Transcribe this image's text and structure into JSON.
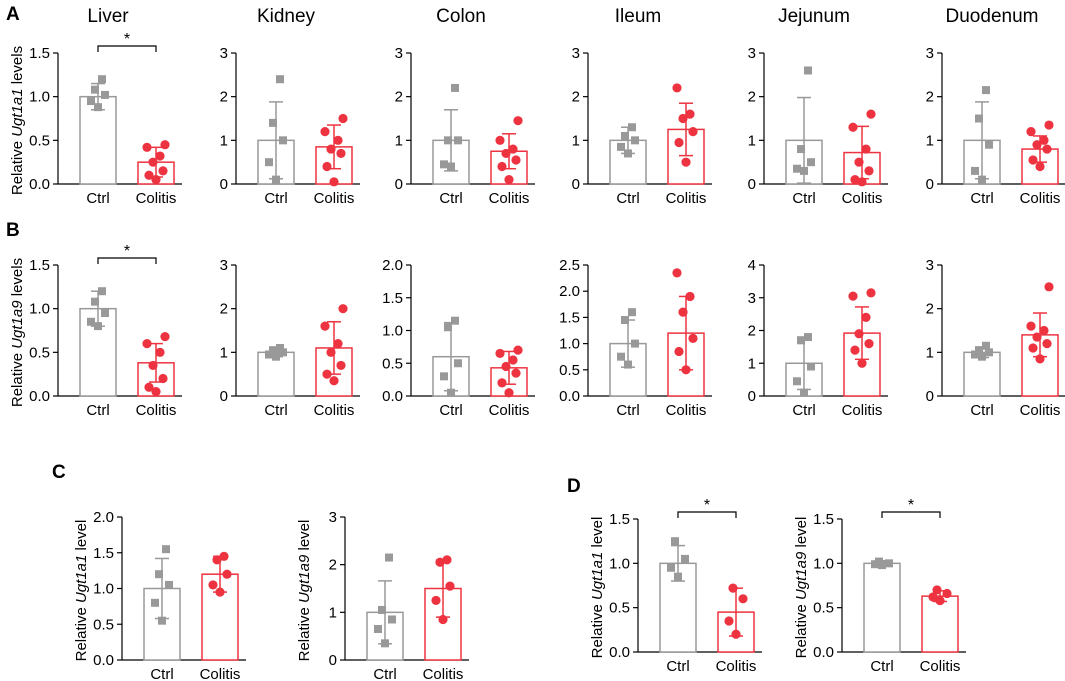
{
  "panel_labels": [
    "A",
    "B",
    "C",
    "D"
  ],
  "colors": {
    "ctrl": "#999999",
    "colitis": "#ee3340",
    "axis": "#000000"
  },
  "chart_data": [
    {
      "type": "bar",
      "panel": "A",
      "title": "Liver",
      "ylabel_prefix": "Relative ",
      "ylabel_gene": "Ugt1a1",
      "ylabel_suffix": " levels",
      "categories": [
        "Ctrl",
        "Colitis"
      ],
      "ylim": [
        0,
        1.5
      ],
      "ticks": [
        "0.0",
        "0.5",
        "1.0",
        "1.5"
      ],
      "sig": "*",
      "series": [
        {
          "name": "Ctrl",
          "mean": 1.0,
          "sd": 0.15,
          "points": [
            0.88,
            0.95,
            1.02,
            1.08,
            1.2
          ]
        },
        {
          "name": "Colitis",
          "mean": 0.25,
          "sd": 0.17,
          "points": [
            0.05,
            0.1,
            0.15,
            0.25,
            0.32,
            0.42,
            0.45
          ]
        }
      ]
    },
    {
      "type": "bar",
      "panel": "A",
      "title": "Kidney",
      "categories": [
        "Ctrl",
        "Colitis"
      ],
      "ylim": [
        0,
        3
      ],
      "ticks": [
        "0",
        "1",
        "2",
        "3"
      ],
      "series": [
        {
          "name": "Ctrl",
          "mean": 1.0,
          "sd": 0.88,
          "points": [
            0.1,
            0.5,
            1.0,
            1.4,
            2.4
          ]
        },
        {
          "name": "Colitis",
          "mean": 0.85,
          "sd": 0.5,
          "points": [
            0.05,
            0.4,
            0.7,
            0.8,
            1.0,
            1.2,
            1.5
          ]
        }
      ]
    },
    {
      "type": "bar",
      "panel": "A",
      "title": "Colon",
      "categories": [
        "Ctrl",
        "Colitis"
      ],
      "ylim": [
        0,
        3
      ],
      "ticks": [
        "0",
        "1",
        "2",
        "3"
      ],
      "series": [
        {
          "name": "Ctrl",
          "mean": 1.0,
          "sd": 0.7,
          "points": [
            0.4,
            0.45,
            1.0,
            1.0,
            2.2
          ]
        },
        {
          "name": "Colitis",
          "mean": 0.75,
          "sd": 0.4,
          "points": [
            0.1,
            0.4,
            0.55,
            0.7,
            0.8,
            1.0,
            1.45
          ]
        }
      ]
    },
    {
      "type": "bar",
      "panel": "A",
      "title": "Ileum",
      "categories": [
        "Ctrl",
        "Colitis"
      ],
      "ylim": [
        0,
        3
      ],
      "ticks": [
        "0",
        "1",
        "2",
        "3"
      ],
      "series": [
        {
          "name": "Ctrl",
          "mean": 1.0,
          "sd": 0.3,
          "points": [
            0.7,
            0.85,
            1.0,
            1.1,
            1.3
          ]
        },
        {
          "name": "Colitis",
          "mean": 1.25,
          "sd": 0.6,
          "points": [
            0.5,
            0.95,
            1.2,
            1.5,
            1.6,
            2.2
          ]
        }
      ]
    },
    {
      "type": "bar",
      "panel": "A",
      "title": "Jejunum",
      "categories": [
        "Ctrl",
        "Colitis"
      ],
      "ylim": [
        0,
        3
      ],
      "ticks": [
        "0",
        "1",
        "2",
        "3"
      ],
      "series": [
        {
          "name": "Ctrl",
          "mean": 1.0,
          "sd": 0.98,
          "points": [
            0.3,
            0.35,
            0.5,
            0.8,
            2.6
          ]
        },
        {
          "name": "Colitis",
          "mean": 0.72,
          "sd": 0.6,
          "points": [
            0.05,
            0.1,
            0.3,
            0.5,
            0.8,
            1.3,
            1.6
          ]
        }
      ]
    },
    {
      "type": "bar",
      "panel": "A",
      "title": "Duodenum",
      "categories": [
        "Ctrl",
        "Colitis"
      ],
      "ylim": [
        0,
        3
      ],
      "ticks": [
        "0",
        "1",
        "2",
        "3"
      ],
      "series": [
        {
          "name": "Ctrl",
          "mean": 1.0,
          "sd": 0.88,
          "points": [
            0.1,
            0.3,
            0.9,
            1.5,
            2.15
          ]
        },
        {
          "name": "Colitis",
          "mean": 0.8,
          "sd": 0.3,
          "points": [
            0.4,
            0.55,
            0.8,
            0.9,
            1.0,
            1.2,
            1.35
          ]
        }
      ]
    },
    {
      "type": "bar",
      "panel": "B",
      "title": "",
      "ylabel_prefix": "Relative ",
      "ylabel_gene": "Ugt1a9",
      "ylabel_suffix": " levels",
      "categories": [
        "Ctrl",
        "Colitis"
      ],
      "ylim": [
        0,
        1.5
      ],
      "ticks": [
        "0.0",
        "0.5",
        "1.0",
        "1.5"
      ],
      "sig": "*",
      "series": [
        {
          "name": "Ctrl",
          "mean": 1.0,
          "sd": 0.2,
          "points": [
            0.8,
            0.85,
            0.95,
            1.08,
            1.2
          ]
        },
        {
          "name": "Colitis",
          "mean": 0.38,
          "sd": 0.22,
          "points": [
            0.05,
            0.1,
            0.2,
            0.35,
            0.5,
            0.6,
            0.68
          ]
        }
      ]
    },
    {
      "type": "bar",
      "panel": "B",
      "title": "",
      "categories": [
        "Ctrl",
        "Colitis"
      ],
      "ylim": [
        0,
        3
      ],
      "ticks": [
        "0",
        "1",
        "2",
        "3"
      ],
      "series": [
        {
          "name": "Ctrl",
          "mean": 1.0,
          "sd": 0.1,
          "points": [
            0.9,
            0.95,
            1.0,
            1.05,
            1.1
          ]
        },
        {
          "name": "Colitis",
          "mean": 1.1,
          "sd": 0.6,
          "points": [
            0.35,
            0.5,
            0.7,
            1.0,
            1.2,
            1.6,
            2.0
          ]
        }
      ]
    },
    {
      "type": "bar",
      "panel": "B",
      "title": "",
      "categories": [
        "Ctrl",
        "Colitis"
      ],
      "ylim": [
        0,
        2
      ],
      "ticks": [
        "0.0",
        "0.5",
        "1.0",
        "1.5",
        "2.0"
      ],
      "series": [
        {
          "name": "Ctrl",
          "mean": 0.6,
          "sd": 0.52,
          "points": [
            0.05,
            0.3,
            0.5,
            1.05,
            1.15
          ]
        },
        {
          "name": "Colitis",
          "mean": 0.43,
          "sd": 0.25,
          "points": [
            0.05,
            0.2,
            0.35,
            0.45,
            0.55,
            0.65,
            0.7
          ]
        }
      ]
    },
    {
      "type": "bar",
      "panel": "B",
      "title": "",
      "categories": [
        "Ctrl",
        "Colitis"
      ],
      "ylim": [
        0,
        2.5
      ],
      "ticks": [
        "0.0",
        "0.5",
        "1.0",
        "1.5",
        "2.0",
        "2.5"
      ],
      "series": [
        {
          "name": "Ctrl",
          "mean": 1.0,
          "sd": 0.45,
          "points": [
            0.6,
            0.75,
            1.0,
            1.45,
            1.6
          ]
        },
        {
          "name": "Colitis",
          "mean": 1.2,
          "sd": 0.7,
          "points": [
            0.5,
            0.85,
            1.1,
            1.6,
            1.9,
            2.35
          ]
        }
      ]
    },
    {
      "type": "bar",
      "panel": "B",
      "title": "",
      "categories": [
        "Ctrl",
        "Colitis"
      ],
      "ylim": [
        0,
        4
      ],
      "ticks": [
        "0",
        "1",
        "2",
        "3",
        "4"
      ],
      "series": [
        {
          "name": "Ctrl",
          "mean": 1.0,
          "sd": 0.8,
          "points": [
            0.1,
            0.45,
            0.9,
            1.7,
            1.8
          ]
        },
        {
          "name": "Colitis",
          "mean": 1.92,
          "sd": 0.8,
          "points": [
            1.0,
            1.4,
            1.6,
            1.9,
            2.4,
            3.05,
            3.15
          ]
        }
      ]
    },
    {
      "type": "bar",
      "panel": "B",
      "title": "",
      "categories": [
        "Ctrl",
        "Colitis"
      ],
      "ylim": [
        0,
        3
      ],
      "ticks": [
        "0",
        "1",
        "2",
        "3"
      ],
      "series": [
        {
          "name": "Ctrl",
          "mean": 1.0,
          "sd": 0.12,
          "points": [
            0.9,
            0.95,
            1.0,
            1.05,
            1.15
          ]
        },
        {
          "name": "Colitis",
          "mean": 1.4,
          "sd": 0.5,
          "points": [
            0.85,
            1.1,
            1.2,
            1.35,
            1.5,
            1.6,
            2.5
          ]
        }
      ]
    },
    {
      "type": "bar",
      "panel": "C",
      "title": "",
      "ylabel_prefix": "Relative ",
      "ylabel_gene": "Ugt1a1",
      "ylabel_suffix": " level",
      "categories": [
        "Ctrl",
        "Colitis"
      ],
      "ylim": [
        0,
        2
      ],
      "ticks": [
        "0.0",
        "0.5",
        "1.0",
        "1.5",
        "2.0"
      ],
      "series": [
        {
          "name": "Ctrl",
          "mean": 1.0,
          "sd": 0.42,
          "points": [
            0.55,
            0.8,
            1.05,
            1.2,
            1.55
          ]
        },
        {
          "name": "Colitis",
          "mean": 1.2,
          "sd": 0.25,
          "points": [
            0.95,
            1.05,
            1.2,
            1.4,
            1.45
          ]
        }
      ]
    },
    {
      "type": "bar",
      "panel": "C",
      "title": "",
      "ylabel_prefix": "Relative ",
      "ylabel_gene": "Ugt1a9",
      "ylabel_suffix": " level",
      "categories": [
        "Ctrl",
        "Colitis"
      ],
      "ylim": [
        0,
        3
      ],
      "ticks": [
        "0",
        "1",
        "2",
        "3"
      ],
      "series": [
        {
          "name": "Ctrl",
          "mean": 1.0,
          "sd": 0.66,
          "points": [
            0.35,
            0.65,
            0.85,
            1.05,
            2.15
          ]
        },
        {
          "name": "Colitis",
          "mean": 1.5,
          "sd": 0.6,
          "points": [
            0.85,
            1.25,
            1.55,
            2.05,
            2.1
          ]
        }
      ]
    },
    {
      "type": "bar",
      "panel": "D",
      "title": "",
      "ylabel_prefix": "Relative ",
      "ylabel_gene": "Ugt1a1",
      "ylabel_suffix": " level",
      "categories": [
        "Ctrl",
        "Colitis"
      ],
      "ylim": [
        0,
        1.5
      ],
      "ticks": [
        "0.0",
        "0.5",
        "1.0",
        "1.5"
      ],
      "sig": "*",
      "series": [
        {
          "name": "Ctrl",
          "mean": 1.0,
          "sd": 0.2,
          "points": [
            0.85,
            0.95,
            1.05,
            1.25
          ]
        },
        {
          "name": "Colitis",
          "mean": 0.45,
          "sd": 0.27,
          "points": [
            0.2,
            0.35,
            0.6,
            0.72
          ]
        }
      ]
    },
    {
      "type": "bar",
      "panel": "D",
      "title": "",
      "ylabel_prefix": "Relative ",
      "ylabel_gene": "Ugt1a9",
      "ylabel_suffix": " level",
      "categories": [
        "Ctrl",
        "Colitis"
      ],
      "ylim": [
        0,
        1.5
      ],
      "ticks": [
        "0.0",
        "0.5",
        "1.0",
        "1.5"
      ],
      "sig": "*",
      "series": [
        {
          "name": "Ctrl",
          "mean": 1.0,
          "sd": 0.03,
          "points": [
            0.98,
            0.99,
            1.0,
            1.02
          ]
        },
        {
          "name": "Colitis",
          "mean": 0.63,
          "sd": 0.06,
          "points": [
            0.58,
            0.62,
            0.66,
            0.7
          ]
        }
      ]
    }
  ]
}
